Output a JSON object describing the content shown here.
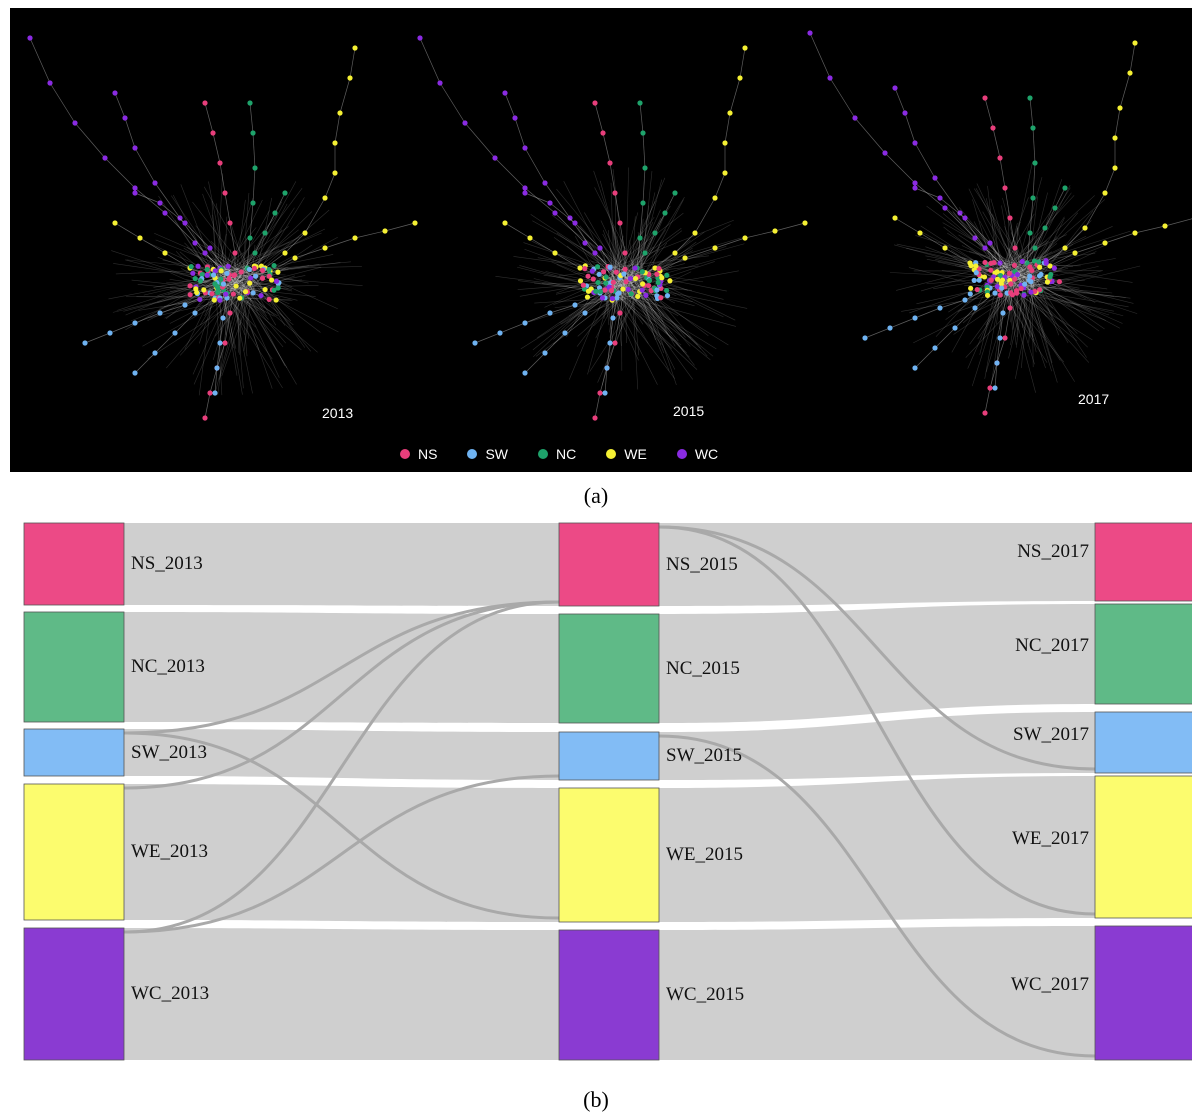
{
  "panel_a": {
    "years": [
      "2013",
      "2015",
      "2017"
    ],
    "legend": [
      {
        "label": "NS",
        "color": "#e83e7b"
      },
      {
        "label": "SW",
        "color": "#6fb3f2"
      },
      {
        "label": "NC",
        "color": "#1ea36b"
      },
      {
        "label": "WE",
        "color": "#f5f033"
      },
      {
        "label": "WC",
        "color": "#8a2be2"
      }
    ]
  },
  "captions": {
    "a": "(a)",
    "b": "(b)"
  },
  "sankey": {
    "colors": {
      "NS": "#ec4a86",
      "NC": "#5fba87",
      "SW": "#82bcf5",
      "WE": "#fcfc6e",
      "WC": "#8a3bd2",
      "flow": "#cfcfcf"
    },
    "columns": [
      {
        "year": "2013",
        "nodes": [
          "NS_2013",
          "NC_2013",
          "SW_2013",
          "WE_2013",
          "WC_2013"
        ]
      },
      {
        "year": "2015",
        "nodes": [
          "NS_2015",
          "NC_2015",
          "SW_2015",
          "WE_2015",
          "WC_2015"
        ]
      },
      {
        "year": "2017",
        "nodes": [
          "NS_2017",
          "NC_2017",
          "SW_2017",
          "WE_2017",
          "WC_2017"
        ]
      }
    ]
  }
}
